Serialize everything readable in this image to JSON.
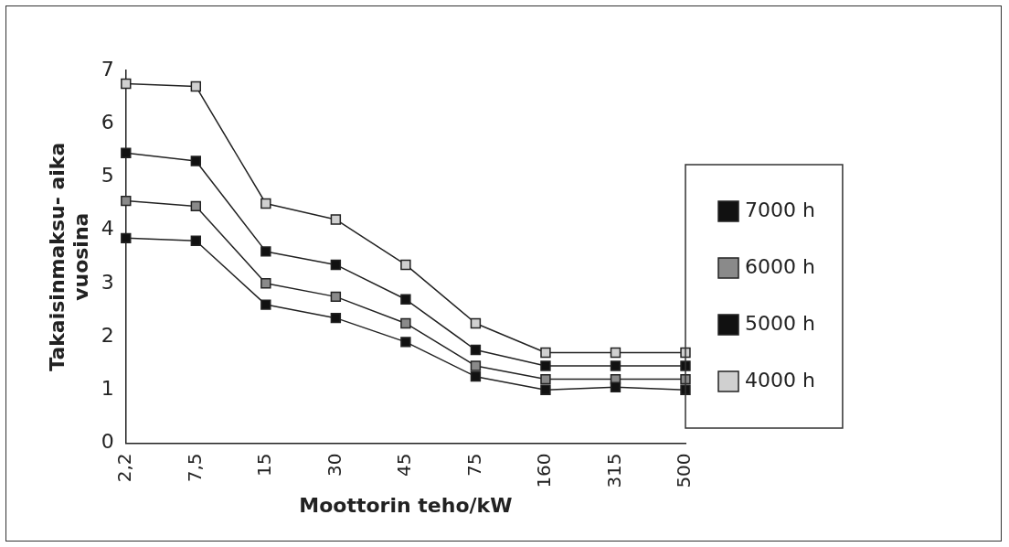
{
  "chart_data": {
    "type": "line",
    "xlabel": "Moottorin teho/kW",
    "ylabel": "Takaisinmaksu- aika vuosina",
    "categories": [
      "2,2",
      "7,5",
      "15",
      "30",
      "45",
      "75",
      "160",
      "315",
      "500"
    ],
    "ylim": [
      0,
      7
    ],
    "yticks": [
      0,
      1,
      2,
      3,
      4,
      5,
      6,
      7
    ],
    "grid": false,
    "legend": "right",
    "marker": "square",
    "line_style": "solid",
    "series": [
      {
        "name": "7000 h",
        "color": "#111111",
        "values": [
          3.85,
          3.8,
          2.6,
          2.35,
          1.9,
          1.25,
          1.0,
          1.05,
          1.0
        ]
      },
      {
        "name": "6000 h",
        "color": "#8a8a8a",
        "values": [
          4.55,
          4.45,
          3.0,
          2.75,
          2.25,
          1.45,
          1.2,
          1.2,
          1.2
        ]
      },
      {
        "name": "5000 h",
        "color": "#111111",
        "values": [
          5.45,
          5.3,
          3.6,
          3.35,
          2.7,
          1.75,
          1.45,
          1.45,
          1.45
        ]
      },
      {
        "name": "4000 h",
        "color": "#d0d0d0",
        "values": [
          6.75,
          6.7,
          4.5,
          4.2,
          3.35,
          2.25,
          1.7,
          1.7,
          1.7
        ]
      }
    ]
  }
}
